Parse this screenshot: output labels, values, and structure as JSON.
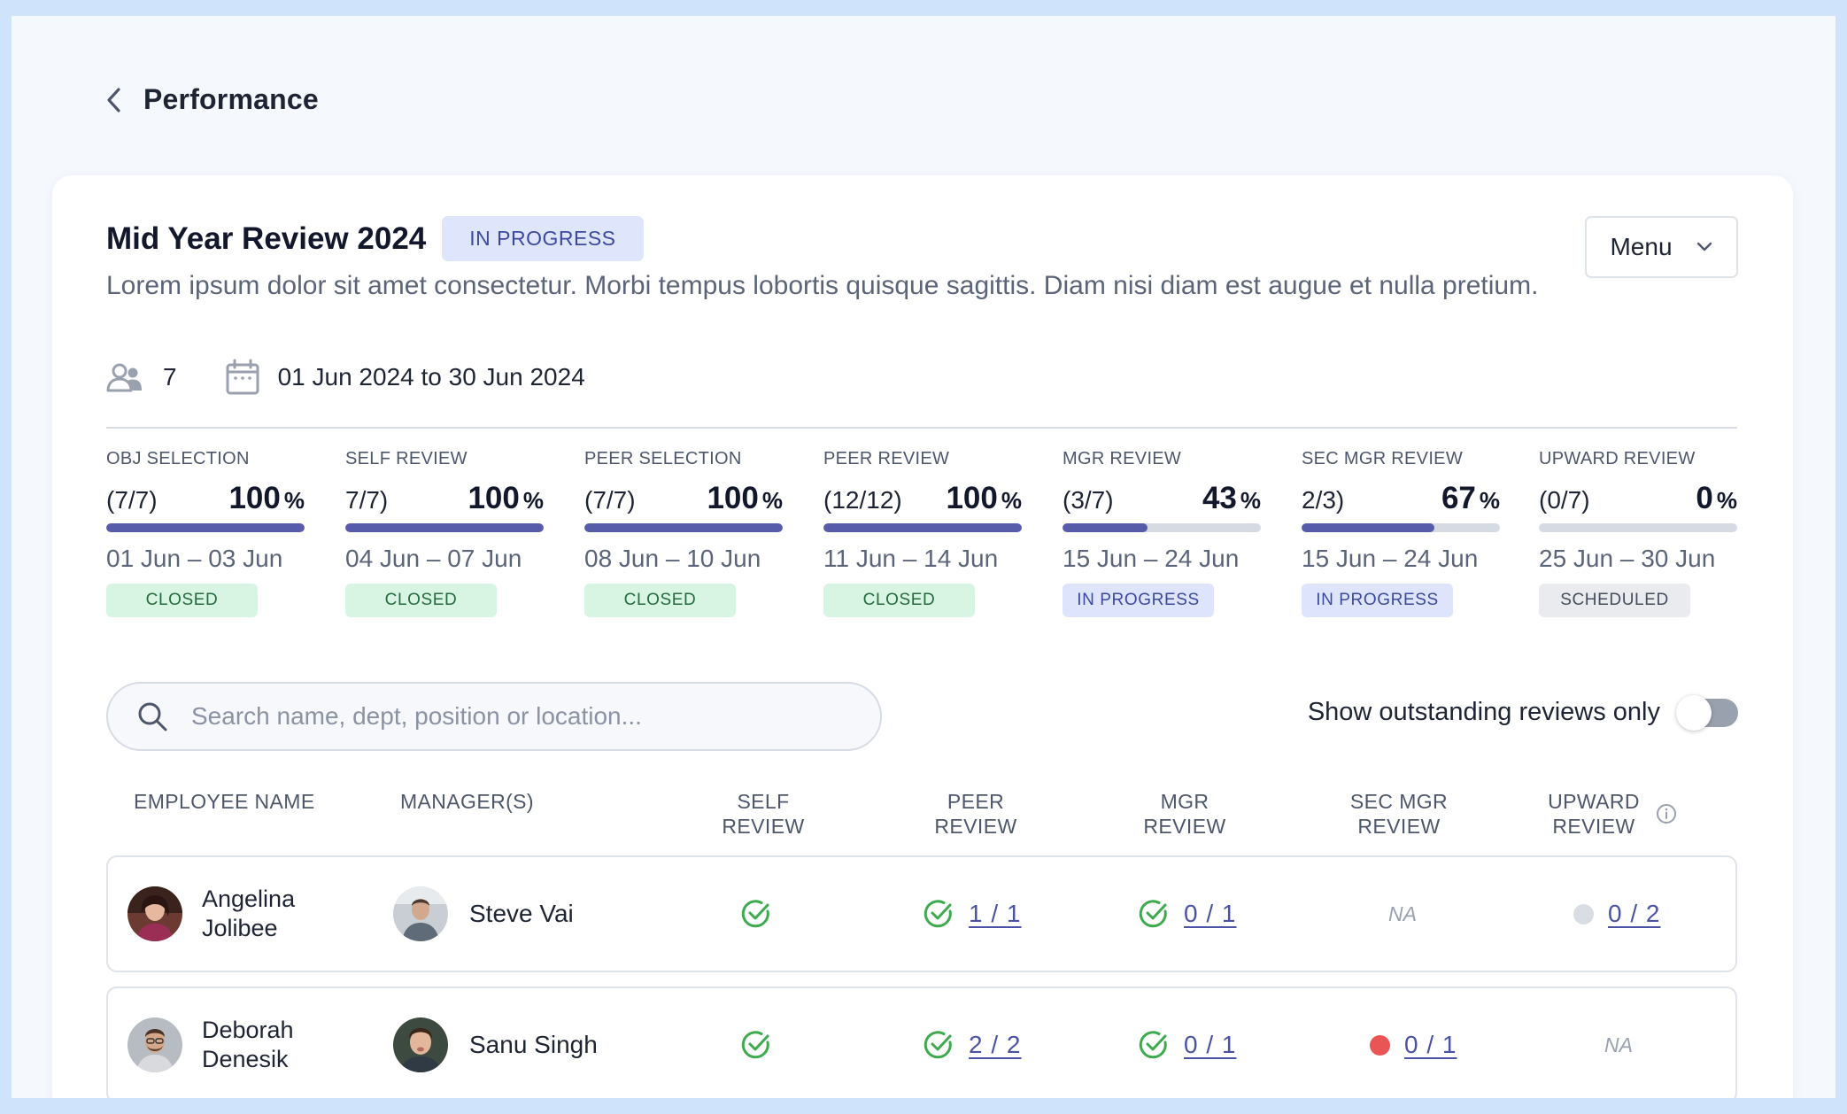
{
  "page": {
    "back_title": "Performance"
  },
  "review": {
    "title": "Mid Year Review 2024",
    "status": "IN PROGRESS",
    "description": "Lorem ipsum dolor sit amet consectetur. Morbi tempus lobortis quisque sagittis. Diam nisi diam est augue et nulla pretium.",
    "participants": "7",
    "date_range": "01 Jun 2024 to 30 Jun 2024",
    "menu_label": "Menu"
  },
  "stages": [
    {
      "name": "OBJ SELECTION",
      "count": "(7/7)",
      "pct": "100",
      "progress": 1.0,
      "dates": "01 Jun – 03 Jun",
      "status": "CLOSED",
      "status_kind": "closed"
    },
    {
      "name": "SELF REVIEW",
      "count": "7/7)",
      "pct": "100",
      "progress": 1.0,
      "dates": "04 Jun – 07 Jun",
      "status": "CLOSED",
      "status_kind": "closed"
    },
    {
      "name": "PEER SELECTION",
      "count": "(7/7)",
      "pct": "100",
      "progress": 1.0,
      "dates": "08 Jun – 10 Jun",
      "status": "CLOSED",
      "status_kind": "closed"
    },
    {
      "name": "PEER REVIEW",
      "count": "(12/12)",
      "pct": "100",
      "progress": 1.0,
      "dates": "11 Jun – 14 Jun",
      "status": "CLOSED",
      "status_kind": "closed"
    },
    {
      "name": "MGR REVIEW",
      "count": "(3/7)",
      "pct": "43",
      "progress": 0.43,
      "dates": "15 Jun – 24 Jun",
      "status": "IN PROGRESS",
      "status_kind": "progress"
    },
    {
      "name": "SEC MGR REVIEW",
      "count": "2/3)",
      "pct": "67",
      "progress": 0.67,
      "dates": "15 Jun – 24 Jun",
      "status": "IN PROGRESS",
      "status_kind": "progress"
    },
    {
      "name": "UPWARD REVIEW",
      "count": "(0/7)",
      "pct": "0",
      "progress": 0.0,
      "dates": "25 Jun – 30 Jun",
      "status": "SCHEDULED",
      "status_kind": "scheduled"
    }
  ],
  "pct_symbol": "%",
  "search": {
    "placeholder": "Search name, dept, position or location..."
  },
  "filter": {
    "label": "Show outstanding reviews only",
    "on": false
  },
  "table": {
    "columns": {
      "employee": "EMPLOYEE NAME",
      "managers": "MANAGER(S)",
      "self": "SELF REVIEW",
      "peer": "PEER REVIEW",
      "mgr": "MGR REVIEW",
      "sec_mgr_1": "SEC MGR",
      "sec_mgr_2": "REVIEW",
      "upward_1": "UPWARD",
      "upward_2": "REVIEW"
    },
    "rows": [
      {
        "employee_line1": "Angelina",
        "employee_line2": "Jolibee",
        "manager": "Steve Vai",
        "self": "done",
        "peer": "1 / 1",
        "peer_state": "done",
        "mgr": "0 / 1",
        "mgr_state": "done",
        "sec_mgr": "NA",
        "sec_mgr_state": "na",
        "upward": "0 / 2",
        "upward_state": "pending"
      },
      {
        "employee_line1": "Deborah",
        "employee_line2": "Denesik",
        "manager": "Sanu Singh",
        "self": "done",
        "peer": "2 / 2",
        "peer_state": "done",
        "mgr": "0 / 1",
        "mgr_state": "done",
        "sec_mgr": "0 / 1",
        "sec_mgr_state": "overdue",
        "upward": "NA",
        "upward_state": "na"
      }
    ]
  },
  "colors": {
    "accent": "#565ca9",
    "success": "#3daa4e",
    "overdue": "#e95454",
    "pending": "#d9dde4"
  }
}
